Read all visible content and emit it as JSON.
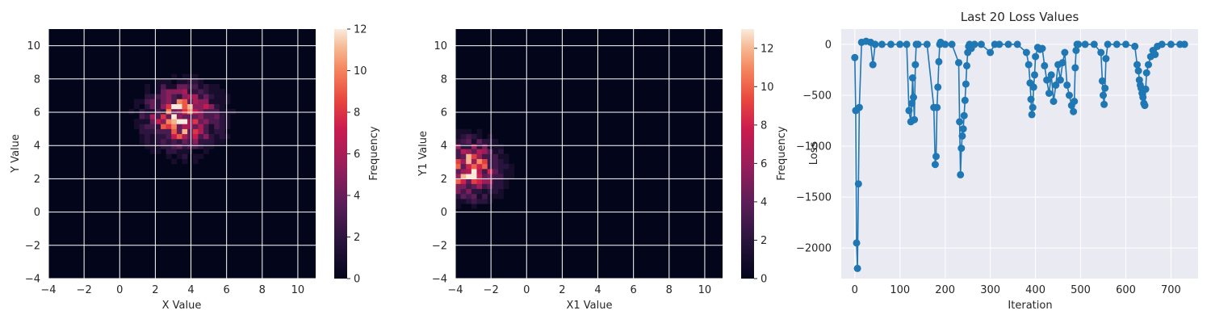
{
  "chart_data": [
    {
      "type": "heatmap",
      "xlabel": "X Value",
      "ylabel": "Y Value",
      "xlim": [
        -4,
        11
      ],
      "ylim": [
        -4,
        11
      ],
      "xticks": [
        -4,
        -2,
        0,
        2,
        4,
        6,
        8,
        10
      ],
      "yticks": [
        -4,
        -2,
        0,
        2,
        4,
        6,
        8,
        10
      ],
      "colorbar": {
        "label": "Frequency",
        "min": 0,
        "max": 12,
        "ticks": [
          0,
          2,
          4,
          6,
          8,
          10,
          12
        ]
      },
      "center": [
        3.5,
        5.7
      ],
      "spread": [
        1.3,
        1.2
      ],
      "peak": 12,
      "grid": true
    },
    {
      "type": "heatmap",
      "xlabel": "X1 Value",
      "ylabel": "Y1 Value",
      "xlim": [
        -4,
        11
      ],
      "ylim": [
        -4,
        11
      ],
      "xticks": [
        -4,
        -2,
        0,
        2,
        4,
        6,
        8,
        10
      ],
      "yticks": [
        -4,
        -2,
        0,
        2,
        4,
        6,
        8,
        10
      ],
      "colorbar": {
        "label": "Frequency",
        "min": 0,
        "max": 13,
        "ticks": [
          0,
          2,
          4,
          6,
          8,
          10,
          12
        ]
      },
      "center": [
        -3.3,
        2.6
      ],
      "spread": [
        1.1,
        1.1
      ],
      "peak": 13,
      "grid": true
    },
    {
      "type": "line",
      "title": "Last 20 Loss Values",
      "xlabel": "Iteration",
      "ylabel": "Loss",
      "xlim": [
        -30,
        760
      ],
      "ylim": [
        -2300,
        150
      ],
      "xticks": [
        0,
        100,
        200,
        300,
        400,
        500,
        600,
        700
      ],
      "yticks": [
        0,
        -500,
        -1000,
        -1500,
        -2000
      ],
      "color": "#1f77b4",
      "x": [
        0,
        2,
        4,
        6,
        8,
        10,
        15,
        25,
        35,
        40,
        45,
        60,
        80,
        100,
        115,
        120,
        124,
        126,
        128,
        130,
        132,
        134,
        136,
        140,
        160,
        175,
        178,
        180,
        182,
        184,
        186,
        188,
        190,
        200,
        215,
        230,
        232,
        234,
        236,
        238,
        240,
        242,
        244,
        246,
        248,
        250,
        252,
        254,
        258,
        265,
        280,
        300,
        310,
        320,
        340,
        360,
        380,
        385,
        388,
        390,
        392,
        394,
        396,
        398,
        400,
        405,
        410,
        415,
        420,
        425,
        430,
        435,
        440,
        445,
        450,
        455,
        460,
        465,
        470,
        475,
        480,
        484,
        486,
        488,
        490,
        492,
        495,
        510,
        530,
        545,
        548,
        550,
        552,
        554,
        556,
        560,
        580,
        600,
        620,
        625,
        628,
        630,
        632,
        634,
        636,
        638,
        640,
        642,
        644,
        646,
        650,
        655,
        660,
        665,
        670,
        680,
        700,
        720,
        730
      ],
      "y": [
        -130,
        -650,
        -1950,
        -2200,
        -1370,
        -620,
        20,
        30,
        20,
        -200,
        0,
        0,
        0,
        0,
        0,
        -650,
        -760,
        -580,
        -330,
        -520,
        -740,
        -200,
        0,
        0,
        0,
        -620,
        -1180,
        -1100,
        -620,
        -420,
        -170,
        0,
        20,
        0,
        0,
        -180,
        -760,
        -1280,
        -1020,
        -900,
        -830,
        -700,
        -550,
        -390,
        -210,
        -80,
        -20,
        0,
        -40,
        0,
        0,
        -80,
        0,
        0,
        0,
        0,
        -80,
        -200,
        -380,
        -540,
        -690,
        -620,
        -420,
        -300,
        -120,
        -30,
        -50,
        -40,
        -210,
        -350,
        -480,
        -300,
        -560,
        -400,
        -200,
        -350,
        -180,
        -80,
        -400,
        -500,
        -600,
        -660,
        -560,
        -230,
        -60,
        0,
        0,
        0,
        0,
        -80,
        -360,
        -500,
        -590,
        -430,
        -140,
        0,
        0,
        0,
        -20,
        -200,
        -260,
        -350,
        -400,
        -430,
        -480,
        -520,
        -580,
        -600,
        -440,
        -280,
        -200,
        -120,
        -60,
        -100,
        -20,
        0,
        0,
        0,
        0
      ],
      "grid": true
    }
  ]
}
